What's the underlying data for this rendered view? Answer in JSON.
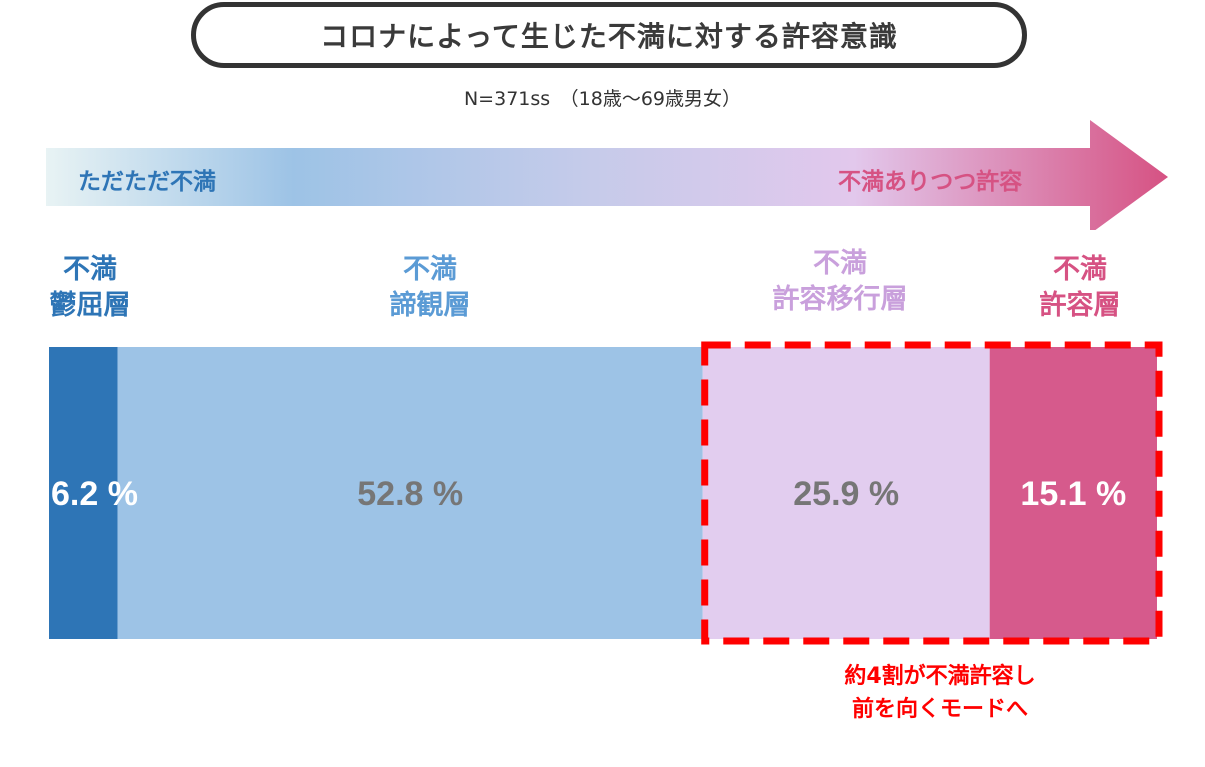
{
  "header": {
    "title": "コロナによって生じた不満に対する許容意識",
    "subtitle": "N=371ss　（18歳～69歳男女）"
  },
  "arrow": {
    "left_label": "ただただ不満",
    "right_label": "不満ありつつ許容",
    "left_color": "#e8f3f4",
    "mid_color": "#9dc3e6",
    "right_color": "#d65283"
  },
  "segment_labels": [
    {
      "line1": "不満",
      "line2": "鬱屈層",
      "color": "#2e75b6"
    },
    {
      "line1": "不満",
      "line2": "諦観層",
      "color": "#5b9bd5"
    },
    {
      "line1": "不満",
      "line2": "許容移行層",
      "color": "#c9a0dc"
    },
    {
      "line1": "不満",
      "line2": "許容層",
      "color": "#d65283"
    }
  ],
  "callout": {
    "line1": "約4割が不満許容し",
    "line2": "前を向くモードへ",
    "color": "#ff0000"
  },
  "chart_data": {
    "type": "bar",
    "stacked": true,
    "orientation": "horizontal",
    "unit": "%",
    "categories": [
      "不満鬱屈層",
      "不満諦観層",
      "不満許容移行層",
      "不満許容層"
    ],
    "values": [
      6.2,
      52.8,
      25.9,
      15.1
    ],
    "data_labels": [
      "6.2 %",
      "52.8 %",
      "25.9 %",
      "15.1 %"
    ],
    "colors": [
      "#2e75b6",
      "#9dc3e6",
      "#e2cdef",
      "#d65a8c"
    ],
    "label_colors": [
      "#ffffff",
      "#767676",
      "#767676",
      "#ffffff"
    ],
    "highlight": {
      "from_index": 2,
      "to_index": 3,
      "style": "dashed",
      "color": "#ff0000"
    }
  }
}
